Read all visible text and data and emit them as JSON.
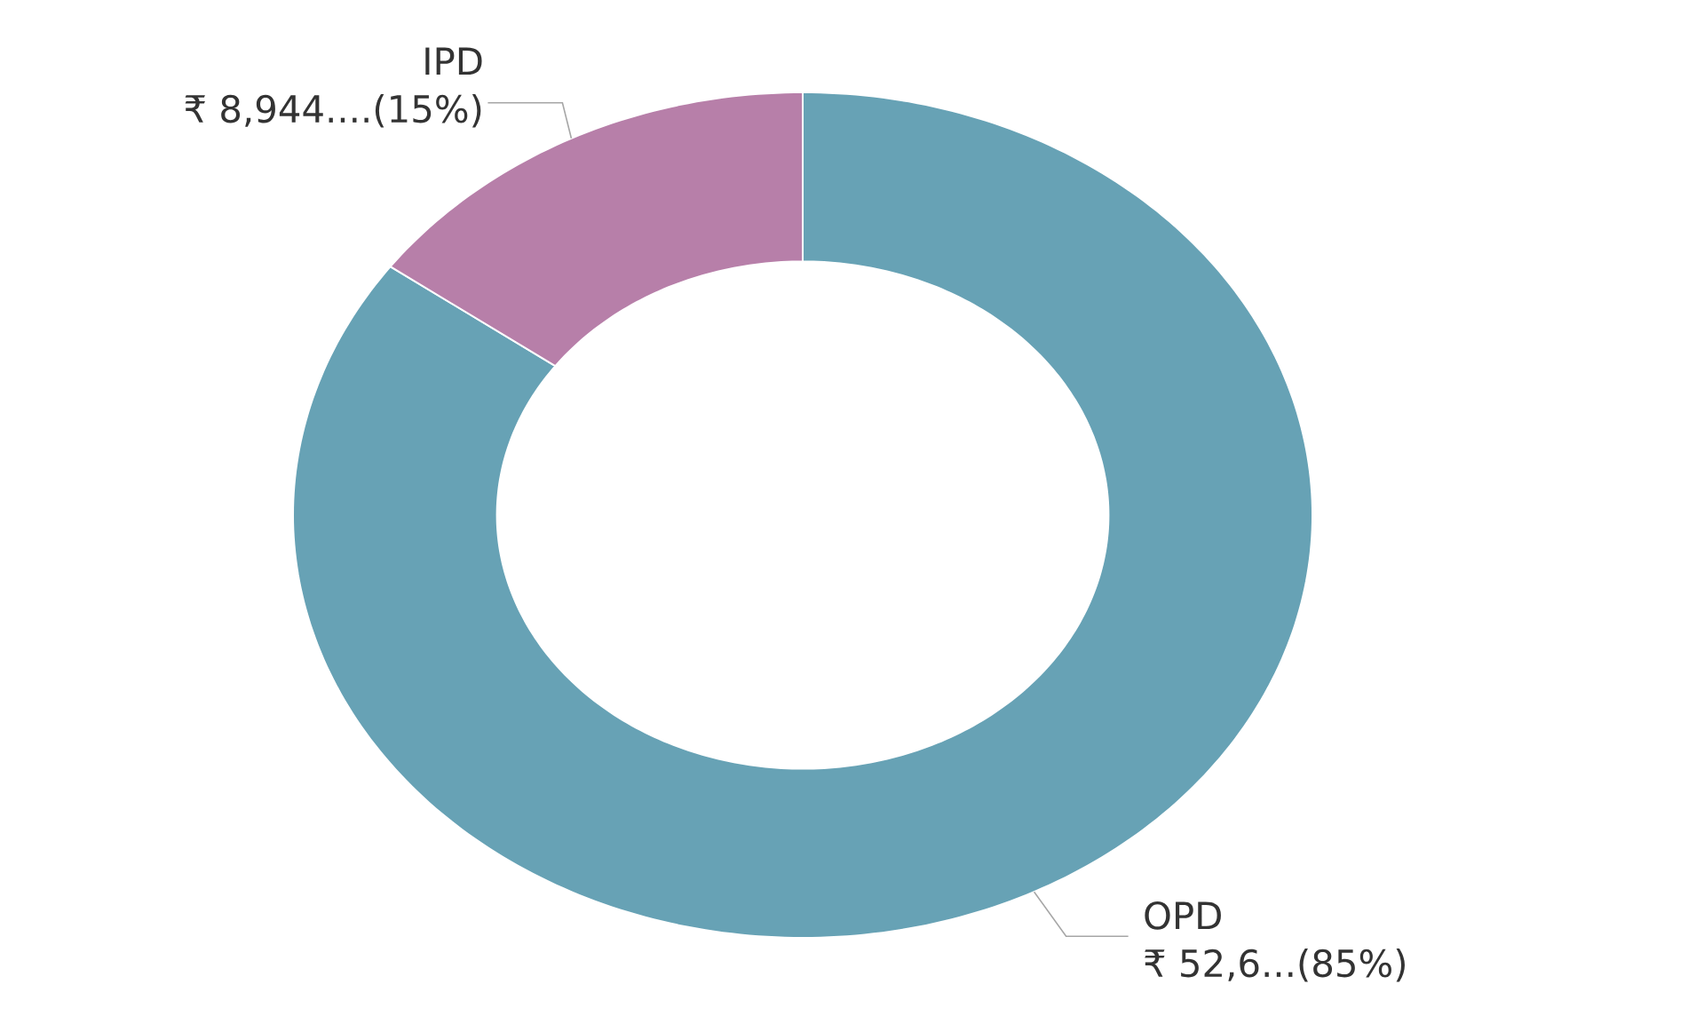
{
  "chart_data": {
    "type": "donut",
    "categories": [
      "OPD",
      "IPD"
    ],
    "values": [
      85,
      15
    ],
    "colors": [
      "#67a2b5",
      "#b77fa9"
    ],
    "value_labels": [
      "₹ 52,6...(85%)",
      "₹ 8,944....(15%)"
    ]
  }
}
